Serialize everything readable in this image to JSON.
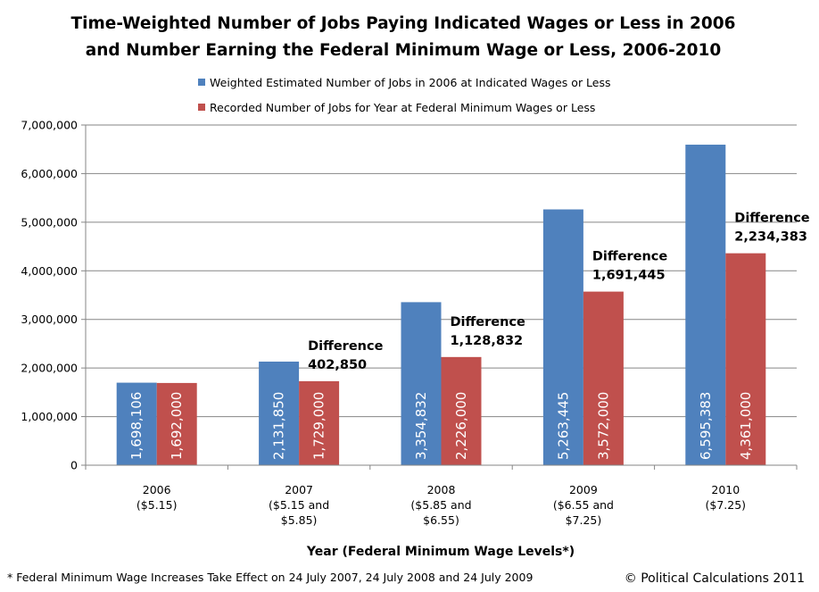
{
  "chart_data": {
    "type": "bar",
    "title": "Time-Weighted Number of Jobs Paying Indicated Wages or Less in 2006",
    "subtitle": "and Number Earning the Federal Minimum Wage or Less, 2006-2010",
    "xlabel": "Year (Federal Minimum Wage Levels*)",
    "ylabel": "",
    "ylim": [
      0,
      7000000
    ],
    "yticks": [
      0,
      1000000,
      2000000,
      3000000,
      4000000,
      5000000,
      6000000,
      7000000
    ],
    "ytick_labels": [
      "0",
      "1,000,000",
      "2,000,000",
      "3,000,000",
      "4,000,000",
      "5,000,000",
      "6,000,000",
      "7,000,000"
    ],
    "grid": true,
    "legend_position": "top",
    "categories": [
      [
        "2006",
        "($5.15)"
      ],
      [
        "2007",
        "($5.15 and",
        "$5.85)"
      ],
      [
        "2008",
        "($5.85 and",
        "$6.55)"
      ],
      [
        "2009",
        "($6.55 and",
        "$7.25)"
      ],
      [
        "2010",
        "($7.25)"
      ]
    ],
    "series": [
      {
        "name": "Weighted Estimated Number of Jobs in 2006 at Indicated Wages or Less",
        "color": "#4f81bd",
        "values": [
          1698106,
          2131850,
          3354832,
          5263445,
          6595383
        ],
        "labels": [
          "1,698,106",
          "2,131,850",
          "3,354,832",
          "5,263,445",
          "6,595,383"
        ]
      },
      {
        "name": "Recorded Number of Jobs for Year at Federal Minimum Wages or Less",
        "color": "#c0504d",
        "values": [
          1692000,
          1729000,
          2226000,
          3572000,
          4361000
        ],
        "labels": [
          "1,692,000",
          "1,729,000",
          "2,226,000",
          "3,572,000",
          "4,361,000"
        ]
      }
    ],
    "annotations": [
      {
        "category": 1,
        "lines": [
          "Difference",
          "402,850"
        ]
      },
      {
        "category": 2,
        "lines": [
          "Difference",
          "1,128,832"
        ]
      },
      {
        "category": 3,
        "lines": [
          "Difference",
          "1,691,445"
        ]
      },
      {
        "category": 4,
        "lines": [
          "Difference",
          "2,234,383"
        ]
      }
    ]
  },
  "footnote": "* Federal Minimum Wage Increases Take Effect on 24 July 2007, 24 July 2008 and 24 July 2009",
  "copyright": "© Political Calculations 2011",
  "colors": {
    "axis": "#868686",
    "grid": "#868686"
  }
}
